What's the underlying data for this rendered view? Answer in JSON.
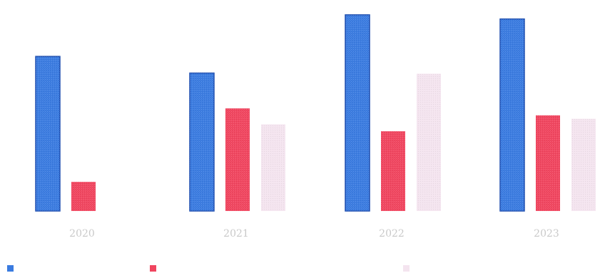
{
  "chart_data": {
    "type": "bar",
    "categories": [
      "2020",
      "2021",
      "2022",
      "2023"
    ],
    "series": [
      {
        "name": "",
        "color": "#3a7be0",
        "values": [
          223,
          199,
          283,
          277
        ]
      },
      {
        "name": "",
        "color": "#f0455f",
        "values": [
          42,
          148,
          115,
          138
        ]
      },
      {
        "name": "",
        "color": "#f4e4ef",
        "values": [
          null,
          125,
          198,
          133
        ]
      }
    ],
    "ylim": [
      0,
      290
    ],
    "grid": false,
    "legend_position": "bottom",
    "title": "",
    "xlabel": "",
    "ylabel": ""
  }
}
